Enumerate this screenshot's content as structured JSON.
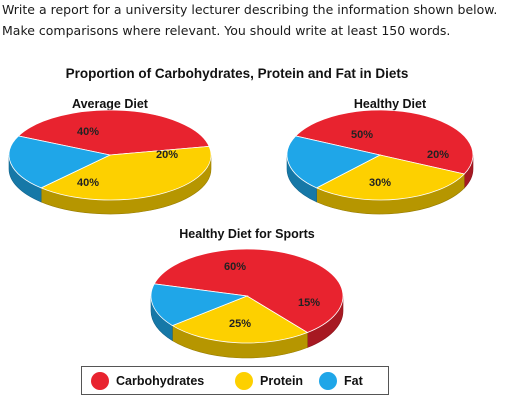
{
  "instructions": {
    "line1": "Write a report for a university lecturer describing the information shown below.",
    "line2": "Make comparisons where relevant. You should write at least 150 words."
  },
  "colors": {
    "carbohydrates": "#e8232f",
    "protein": "#fdd000",
    "fat": "#1fa6e8"
  },
  "chart_data": {
    "type": "pie",
    "title": "Proportion of Carbohydrates, Protein and Fat in Diets",
    "categories": [
      "Carbohydrates",
      "Protein",
      "Fat"
    ],
    "pies": [
      {
        "name": "Average Diet",
        "values": [
          40,
          40,
          20
        ],
        "labels": [
          "40%",
          "40%",
          "20%"
        ]
      },
      {
        "name": "Healthy Diet",
        "values": [
          50,
          30,
          20
        ],
        "labels": [
          "50%",
          "30%",
          "20%"
        ]
      },
      {
        "name": "Healthy Diet for Sports",
        "values": [
          60,
          25,
          15
        ],
        "labels": [
          "60%",
          "25%",
          "15%"
        ]
      }
    ],
    "legend": {
      "position": "bottom",
      "entries": [
        "Carbohydrates",
        "Protein",
        "Fat"
      ]
    }
  }
}
